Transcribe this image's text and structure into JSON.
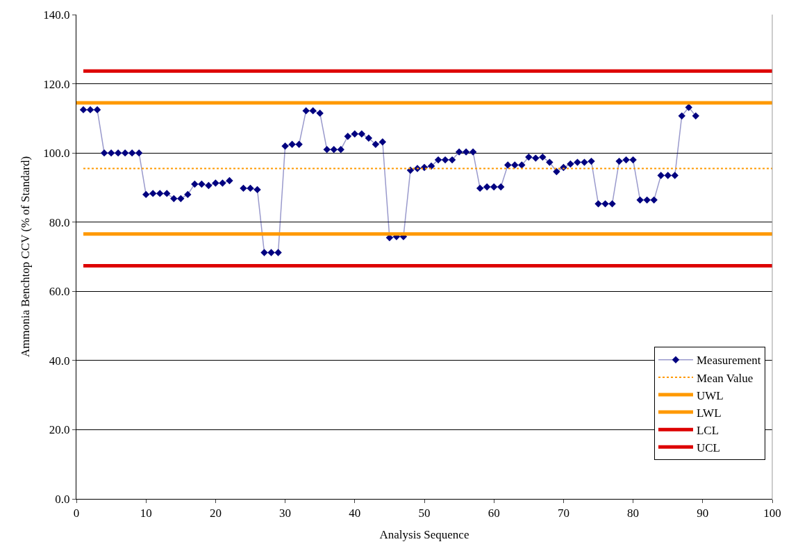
{
  "chart_data": {
    "type": "line",
    "xlabel": "Analysis Sequence",
    "ylabel": "Ammonia Benchtop CCV (% of Standard)",
    "xlim": [
      0,
      100
    ],
    "xticks": [
      0,
      10,
      20,
      30,
      40,
      50,
      60,
      70,
      80,
      90,
      100
    ],
    "ylim": [
      0,
      140
    ],
    "yticks": [
      {
        "value": 0,
        "label": "0.0"
      },
      {
        "value": 20,
        "label": "20.0"
      },
      {
        "value": 40,
        "label": "40.0"
      },
      {
        "value": 60,
        "label": "60.0"
      },
      {
        "value": 80,
        "label": "80.0"
      },
      {
        "value": 100,
        "label": "100.0"
      },
      {
        "value": 120,
        "label": "120.0"
      },
      {
        "value": 140,
        "label": "140.0"
      }
    ],
    "grid": "y",
    "legend": "bottom right",
    "x": [
      1,
      2,
      3,
      4,
      5,
      6,
      7,
      8,
      9,
      10,
      11,
      12,
      13,
      14,
      15,
      16,
      17,
      18,
      19,
      20,
      21,
      22,
      23,
      24,
      25,
      26,
      27,
      28,
      29,
      30,
      31,
      32,
      33,
      34,
      35,
      36,
      37,
      38,
      39,
      40,
      41,
      42,
      43,
      44,
      45,
      46,
      47,
      48,
      49,
      50,
      51,
      52,
      53,
      54,
      55,
      56,
      57,
      58,
      59,
      60,
      61,
      62,
      63,
      64,
      65,
      66,
      67,
      68,
      69,
      70,
      71,
      72,
      73,
      74,
      75,
      76,
      77,
      78,
      79,
      80,
      81,
      82,
      83,
      84,
      85,
      86,
      87,
      88,
      89
    ],
    "series": [
      {
        "name": "Measurement",
        "color": "#000080",
        "marker": "diamond",
        "values": [
          112.5,
          112.5,
          112.5,
          100,
          100,
          100,
          100,
          100,
          100,
          88,
          88.3,
          88.3,
          88.3,
          86.8,
          86.8,
          88,
          91,
          91,
          90.6,
          91.3,
          91.3,
          92,
          null,
          89.8,
          89.8,
          89.4,
          71.2,
          71.2,
          71.2,
          102,
          102.5,
          102.5,
          112.2,
          112.2,
          111.5,
          101,
          101,
          101,
          104.8,
          105.5,
          105.5,
          104.3,
          102.5,
          103.2,
          75.5,
          75.8,
          75.8,
          95,
          95.5,
          95.8,
          96.2,
          98,
          98,
          98,
          100.3,
          100.3,
          100.3,
          89.8,
          90.2,
          90.2,
          90.2,
          96.5,
          96.5,
          96.5,
          98.8,
          98.5,
          98.8,
          97.3,
          94.6,
          95.8,
          96.8,
          97.3,
          97.3,
          97.6,
          85.3,
          85.3,
          85.3,
          97.6,
          98,
          98,
          86.4,
          86.4,
          86.4,
          93.5,
          93.5,
          93.5,
          110.7,
          113.2,
          110.7
        ]
      },
      {
        "name": "Mean Value",
        "color": "#ff9900",
        "line_style": "dotted",
        "x": [
          1,
          100
        ],
        "values": [
          95.5,
          95.5
        ]
      },
      {
        "name": "UWL",
        "color": "#ff9900",
        "x": [
          0,
          100
        ],
        "values": [
          114.5,
          114.5
        ]
      },
      {
        "name": "LWL",
        "color": "#ff9900",
        "x": [
          1,
          100
        ],
        "values": [
          76.6,
          76.6
        ]
      },
      {
        "name": "LCL",
        "color": "#dd0000",
        "x": [
          1,
          100
        ],
        "values": [
          67.4,
          67.4
        ]
      },
      {
        "name": "UCL",
        "color": "#dd0000",
        "x": [
          1,
          100
        ],
        "values": [
          123.7,
          123.7
        ]
      }
    ]
  }
}
